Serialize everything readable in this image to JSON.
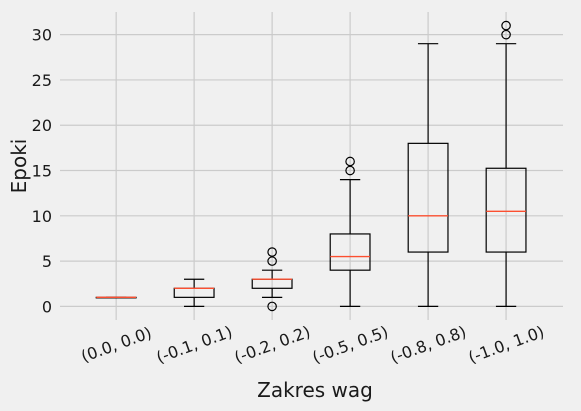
{
  "chart_data": {
    "type": "box",
    "xlabel": "Zakres wag",
    "ylabel": "Epoki",
    "ylim": [
      -1.5,
      32.5
    ],
    "yticks": [
      0,
      5,
      10,
      15,
      20,
      25,
      30
    ],
    "grid": true,
    "categories": [
      "(0.0, 0.0)",
      "(-0.1, 0.1)",
      "(-0.2, 0.2)",
      "(-0.5, 0.5)",
      "(-0.8, 0.8)",
      "(-1.0, 1.0)"
    ],
    "boxes": [
      {
        "whisker_low": 1,
        "q1": 1,
        "median": 1,
        "q3": 1,
        "whisker_high": 1,
        "outliers": []
      },
      {
        "whisker_low": 0,
        "q1": 1,
        "median": 2,
        "q3": 2,
        "whisker_high": 3,
        "outliers": []
      },
      {
        "whisker_low": 1,
        "q1": 2,
        "median": 3,
        "q3": 3,
        "whisker_high": 4,
        "outliers": [
          0,
          5,
          6
        ]
      },
      {
        "whisker_low": 0,
        "q1": 4,
        "median": 5.5,
        "q3": 8,
        "whisker_high": 14,
        "outliers": [
          15,
          16
        ]
      },
      {
        "whisker_low": 0,
        "q1": 6,
        "median": 10,
        "q3": 18,
        "whisker_high": 29,
        "outliers": []
      },
      {
        "whisker_low": 0,
        "q1": 6,
        "median": 10.5,
        "q3": 15.25,
        "whisker_high": 29,
        "outliers": [
          30,
          31
        ]
      }
    ],
    "colors": {
      "box": "#000000",
      "median": "#fc4f30",
      "grid": "#cbcbcb",
      "background": "#f0f0f0"
    }
  }
}
